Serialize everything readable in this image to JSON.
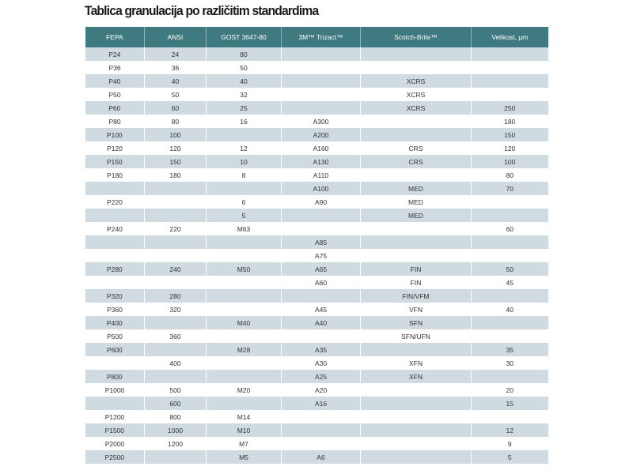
{
  "title": "Tablica granulacija po različitim standardima",
  "colors": {
    "header_bg": "#3f7a80",
    "header_text": "#ffffff",
    "row_shaded": "#d0dbe1",
    "row_plain": "#ffffff",
    "text": "#333333"
  },
  "table": {
    "headers": [
      "FEPA",
      "ANSI",
      "GOST 3647-80",
      "3M™ Trizact™",
      "Scotch-Brite™",
      "Velikost, µm"
    ],
    "rows": [
      [
        "P24",
        "24",
        "80",
        "",
        "",
        ""
      ],
      [
        "P36",
        "36",
        "50",
        "",
        "",
        ""
      ],
      [
        "P40",
        "40",
        "40",
        "",
        "XCRS",
        ""
      ],
      [
        "P50",
        "50",
        "32",
        "",
        "XCRS",
        ""
      ],
      [
        "P60",
        "60",
        "25",
        "",
        "XCRS",
        "250"
      ],
      [
        "P80",
        "80",
        "16",
        "A300",
        "",
        "180"
      ],
      [
        "P100",
        "100",
        "",
        "A200",
        "",
        "150"
      ],
      [
        "P120",
        "120",
        "12",
        "A160",
        "CRS",
        "120"
      ],
      [
        "P150",
        "150",
        "10",
        "A130",
        "CRS",
        "100"
      ],
      [
        "P180",
        "180",
        "8",
        "A110",
        "",
        "80"
      ],
      [
        "",
        "",
        "",
        "A100",
        "MED",
        "70"
      ],
      [
        "P220",
        "",
        "6",
        "A90",
        "MED",
        ""
      ],
      [
        "",
        "",
        "5",
        "",
        "MED",
        ""
      ],
      [
        "P240",
        "220",
        "M63",
        "",
        "",
        "60"
      ],
      [
        "",
        "",
        "",
        "A85",
        "",
        ""
      ],
      [
        "",
        "",
        "",
        "A75",
        "",
        ""
      ],
      [
        "P280",
        "240",
        "M50",
        "A65",
        "FIN",
        "50"
      ],
      [
        "",
        "",
        "",
        "A60",
        "FIN",
        "45"
      ],
      [
        "P320",
        "280",
        "",
        "",
        "FIN/VFM",
        ""
      ],
      [
        "P360",
        "320",
        "",
        "A45",
        "VFN",
        "40"
      ],
      [
        "P400",
        "",
        "M40",
        "A40",
        "SFN",
        ""
      ],
      [
        "P500",
        "360",
        "",
        "",
        "SFN/UFN",
        ""
      ],
      [
        "P600",
        "",
        "M28",
        "A35",
        "",
        "35"
      ],
      [
        "",
        "400",
        "",
        "A30",
        "XFN",
        "30"
      ],
      [
        "P800",
        "",
        "",
        "A25",
        "XFN",
        ""
      ],
      [
        "P1000",
        "500",
        "M20",
        "A20",
        "",
        "20"
      ],
      [
        "",
        "600",
        "",
        "A16",
        "",
        "15"
      ],
      [
        "P1200",
        "800",
        "M14",
        "",
        "",
        ""
      ],
      [
        "P1500",
        "1000",
        "M10",
        "",
        "",
        "12"
      ],
      [
        "P2000",
        "1200",
        "M7",
        "",
        "",
        "9"
      ],
      [
        "P2500",
        "",
        "M5",
        "A6",
        "",
        "5"
      ]
    ]
  }
}
